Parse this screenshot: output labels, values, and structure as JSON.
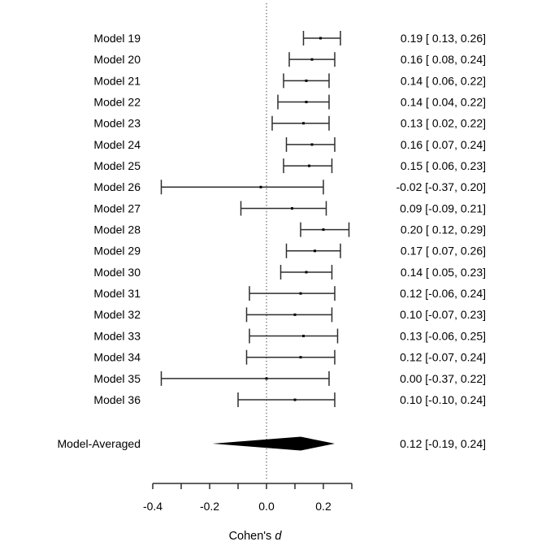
{
  "page": {
    "background": "#ffffff"
  },
  "chart_data": {
    "type": "forest",
    "title": "",
    "xlabel": "Cohen's d",
    "xlabel_parts": [
      {
        "text": "Cohen's ",
        "italic": false
      },
      {
        "text": "d",
        "italic": true
      }
    ],
    "x_axis": {
      "range": [
        -0.4,
        0.3
      ],
      "all_tick_values": [
        -0.4,
        -0.3,
        -0.2,
        -0.1,
        0.0,
        0.1,
        0.2,
        0.3
      ],
      "labeled_ticks": [
        {
          "value": -0.4,
          "label": "-0.4"
        },
        {
          "value": -0.2,
          "label": "-0.2"
        },
        {
          "value": 0.0,
          "label": "0.0"
        },
        {
          "value": 0.2,
          "label": "0.2"
        }
      ]
    },
    "reference_line_value": 0.0,
    "rows": [
      {
        "label": "Model 19",
        "estimate": 0.19,
        "ci_lower": 0.13,
        "ci_upper": 0.26,
        "annotation": "0.19 [ 0.13, 0.26]"
      },
      {
        "label": "Model 20",
        "estimate": 0.16,
        "ci_lower": 0.08,
        "ci_upper": 0.24,
        "annotation": "0.16 [ 0.08, 0.24]"
      },
      {
        "label": "Model 21",
        "estimate": 0.14,
        "ci_lower": 0.06,
        "ci_upper": 0.22,
        "annotation": "0.14 [ 0.06, 0.22]"
      },
      {
        "label": "Model 22",
        "estimate": 0.14,
        "ci_lower": 0.04,
        "ci_upper": 0.22,
        "annotation": "0.14 [ 0.04, 0.22]"
      },
      {
        "label": "Model 23",
        "estimate": 0.13,
        "ci_lower": 0.02,
        "ci_upper": 0.22,
        "annotation": "0.13 [ 0.02, 0.22]"
      },
      {
        "label": "Model 24",
        "estimate": 0.16,
        "ci_lower": 0.07,
        "ci_upper": 0.24,
        "annotation": "0.16 [ 0.07, 0.24]"
      },
      {
        "label": "Model 25",
        "estimate": 0.15,
        "ci_lower": 0.06,
        "ci_upper": 0.23,
        "annotation": "0.15 [ 0.06, 0.23]"
      },
      {
        "label": "Model 26",
        "estimate": -0.02,
        "ci_lower": -0.37,
        "ci_upper": 0.2,
        "annotation": "-0.02 [-0.37, 0.20]"
      },
      {
        "label": "Model 27",
        "estimate": 0.09,
        "ci_lower": -0.09,
        "ci_upper": 0.21,
        "annotation": "0.09 [-0.09, 0.21]"
      },
      {
        "label": "Model 28",
        "estimate": 0.2,
        "ci_lower": 0.12,
        "ci_upper": 0.29,
        "annotation": "0.20 [ 0.12, 0.29]"
      },
      {
        "label": "Model 29",
        "estimate": 0.17,
        "ci_lower": 0.07,
        "ci_upper": 0.26,
        "annotation": "0.17 [ 0.07, 0.26]"
      },
      {
        "label": "Model 30",
        "estimate": 0.14,
        "ci_lower": 0.05,
        "ci_upper": 0.23,
        "annotation": "0.14 [ 0.05, 0.23]"
      },
      {
        "label": "Model 31",
        "estimate": 0.12,
        "ci_lower": -0.06,
        "ci_upper": 0.24,
        "annotation": "0.12 [-0.06, 0.24]"
      },
      {
        "label": "Model 32",
        "estimate": 0.1,
        "ci_lower": -0.07,
        "ci_upper": 0.23,
        "annotation": "0.10 [-0.07, 0.23]"
      },
      {
        "label": "Model 33",
        "estimate": 0.13,
        "ci_lower": -0.06,
        "ci_upper": 0.25,
        "annotation": "0.13 [-0.06, 0.25]"
      },
      {
        "label": "Model 34",
        "estimate": 0.12,
        "ci_lower": -0.07,
        "ci_upper": 0.24,
        "annotation": "0.12 [-0.07, 0.24]"
      },
      {
        "label": "Model 35",
        "estimate": 0.0,
        "ci_lower": -0.37,
        "ci_upper": 0.22,
        "annotation": "0.00 [-0.37, 0.22]"
      },
      {
        "label": "Model 36",
        "estimate": 0.1,
        "ci_lower": -0.1,
        "ci_upper": 0.24,
        "annotation": "0.10 [-0.10, 0.24]"
      }
    ],
    "summary": {
      "label": "Model-Averaged",
      "estimate": 0.12,
      "ci_lower": -0.19,
      "ci_upper": 0.24,
      "annotation": "0.12 [-0.19, 0.24]"
    },
    "colors": {
      "line": "#2e2e2e",
      "point": "#000000",
      "diamond": "#000000",
      "axis": "#2e2e2e",
      "reference_line": "#333333",
      "text": "#000000"
    }
  }
}
